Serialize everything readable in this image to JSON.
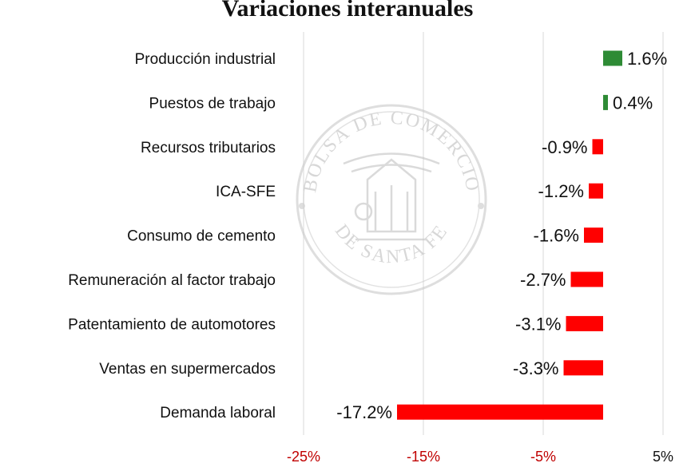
{
  "chart_data": {
    "type": "bar",
    "orientation": "horizontal",
    "title": "Variaciones interanuales",
    "categories": [
      "Producción industrial",
      "Puestos de trabajo",
      "Recursos tributarios",
      "ICA-SFE",
      "Consumo de cemento",
      "Remuneración al factor trabajo",
      "Patentamiento de automotores",
      "Ventas en supermercados",
      "Demanda laboral"
    ],
    "values": [
      1.6,
      0.4,
      -0.9,
      -1.2,
      -1.6,
      -2.7,
      -3.1,
      -3.3,
      -17.2
    ],
    "data_labels": [
      "1.6%",
      "0.4%",
      "-0.9%",
      "-1.2%",
      "-1.6%",
      "-2.7%",
      "-3.1%",
      "-3.3%",
      "-17.2%"
    ],
    "xlim": [
      -25,
      5
    ],
    "x_ticks": [
      -25,
      -15,
      -5,
      5
    ],
    "x_tick_labels": [
      "-25%",
      "-15%",
      "-5%",
      "5%"
    ],
    "grid": true,
    "legend": "none",
    "colors": {
      "positive": "#2e8b35",
      "negative": "#ff0000",
      "negative_tick": "#c00000",
      "positive_tick": "#111111"
    },
    "watermark": {
      "top_text": "BOLSA DE COMERCIO",
      "bottom_text": "DE SANTA FE",
      "icon": "seal-emblem-icon"
    }
  }
}
